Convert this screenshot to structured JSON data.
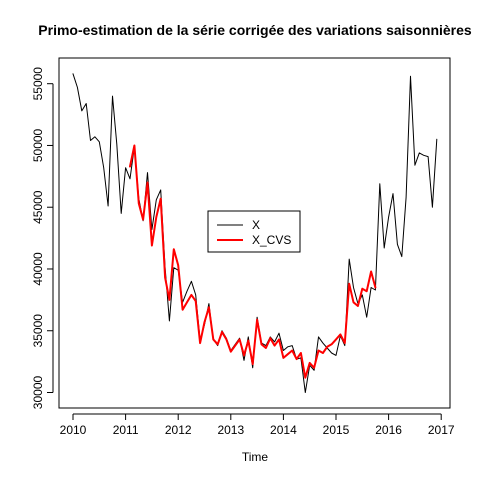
{
  "chart_data": {
    "type": "line",
    "title": "Primo-estimation de la série corrigée des variations saisonnières",
    "xlabel": "Time",
    "ylabel": "",
    "xlim": [
      2010,
      2017
    ],
    "ylim": [
      30000,
      56000
    ],
    "x_ticks": [
      2010,
      2011,
      2012,
      2013,
      2014,
      2015,
      2016,
      2017
    ],
    "x_tick_labels": [
      "2010",
      "2011",
      "2012",
      "2013",
      "2014",
      "2015",
      "2016",
      "2017"
    ],
    "y_ticks": [
      30000,
      35000,
      40000,
      45000,
      50000,
      55000
    ],
    "y_tick_labels": [
      "30000",
      "35000",
      "40000",
      "45000",
      "50000",
      "55000"
    ],
    "legend": {
      "position": "center-left",
      "entries": [
        "X",
        "X_CVS"
      ]
    },
    "grid": false,
    "series": [
      {
        "name": "X",
        "color": "#000000",
        "x": [
          2010.0,
          2010.083,
          2010.167,
          2010.25,
          2010.333,
          2010.417,
          2010.5,
          2010.583,
          2010.667,
          2010.75,
          2010.833,
          2010.917,
          2011.0,
          2011.083,
          2011.167,
          2011.25,
          2011.333,
          2011.417,
          2011.5,
          2011.583,
          2011.667,
          2011.75,
          2011.833,
          2011.917,
          2012.0,
          2012.083,
          2012.167,
          2012.25,
          2012.333,
          2012.417,
          2012.5,
          2012.583,
          2012.667,
          2012.75,
          2012.833,
          2012.917,
          2013.0,
          2013.083,
          2013.167,
          2013.25,
          2013.333,
          2013.417,
          2013.5,
          2013.583,
          2013.667,
          2013.75,
          2013.833,
          2013.917,
          2014.0,
          2014.083,
          2014.167,
          2014.25,
          2014.333,
          2014.417,
          2014.5,
          2014.583,
          2014.667,
          2014.75,
          2014.833,
          2014.917,
          2015.0,
          2015.083,
          2015.167,
          2015.25,
          2015.333,
          2015.417,
          2015.5,
          2015.583,
          2015.667,
          2015.75,
          2015.833,
          2015.917,
          2016.0,
          2016.083,
          2016.167,
          2016.25,
          2016.333,
          2016.417,
          2016.5,
          2016.583,
          2016.667,
          2016.75,
          2016.833,
          2016.917
        ],
        "values": [
          55800,
          54700,
          52800,
          53400,
          50400,
          50700,
          50300,
          48200,
          45100,
          54000,
          50100,
          44500,
          48200,
          47300,
          49900,
          45700,
          43900,
          47800,
          43200,
          45600,
          46400,
          40100,
          35800,
          40100,
          39900,
          37300,
          38200,
          39000,
          37900,
          34200,
          35500,
          37200,
          34300,
          33800,
          35000,
          34400,
          33400,
          33900,
          34400,
          32600,
          34500,
          32000,
          36100,
          34000,
          33800,
          34500,
          34100,
          34800,
          33400,
          33700,
          33800,
          32700,
          32800,
          30000,
          32200,
          31800,
          34500,
          34000,
          33600,
          33200,
          33000,
          34600,
          33800,
          40800,
          38500,
          37200,
          37900,
          36100,
          38500,
          38300,
          46900,
          41700,
          44200,
          46100,
          42000,
          41000,
          45800,
          55600,
          48400,
          49400,
          49200,
          49100,
          45000,
          50500
        ]
      },
      {
        "name": "X_CVS",
        "color": "#ff0000",
        "x": [
          2011.083,
          2011.167,
          2011.25,
          2011.333,
          2011.417,
          2011.5,
          2011.583,
          2011.667,
          2011.75,
          2011.833,
          2011.917,
          2012.0,
          2012.083,
          2012.167,
          2012.25,
          2012.333,
          2012.417,
          2012.5,
          2012.583,
          2012.667,
          2012.75,
          2012.833,
          2012.917,
          2013.0,
          2013.083,
          2013.167,
          2013.25,
          2013.333,
          2013.417,
          2013.5,
          2013.583,
          2013.667,
          2013.75,
          2013.833,
          2013.917,
          2014.0,
          2014.083,
          2014.167,
          2014.25,
          2014.333,
          2014.417,
          2014.5,
          2014.583,
          2014.667,
          2014.75,
          2014.833,
          2014.917,
          2015.0,
          2015.083,
          2015.167,
          2015.25,
          2015.333,
          2015.417,
          2015.5,
          2015.583,
          2015.667,
          2015.75
        ],
        "values": [
          48300,
          50000,
          45300,
          44000,
          47000,
          41900,
          44200,
          45700,
          39300,
          37500,
          41600,
          40300,
          36700,
          37300,
          37900,
          37400,
          34000,
          35700,
          36900,
          34300,
          33900,
          34900,
          34300,
          33300,
          33800,
          34300,
          33000,
          34200,
          32300,
          35900,
          33900,
          33600,
          34400,
          33800,
          34300,
          32800,
          33100,
          33400,
          32700,
          33200,
          31200,
          32400,
          32000,
          33400,
          33200,
          33700,
          33900,
          34300,
          34700,
          34000,
          38800,
          37300,
          37000,
          38400,
          38200,
          39800,
          38500
        ]
      }
    ]
  }
}
